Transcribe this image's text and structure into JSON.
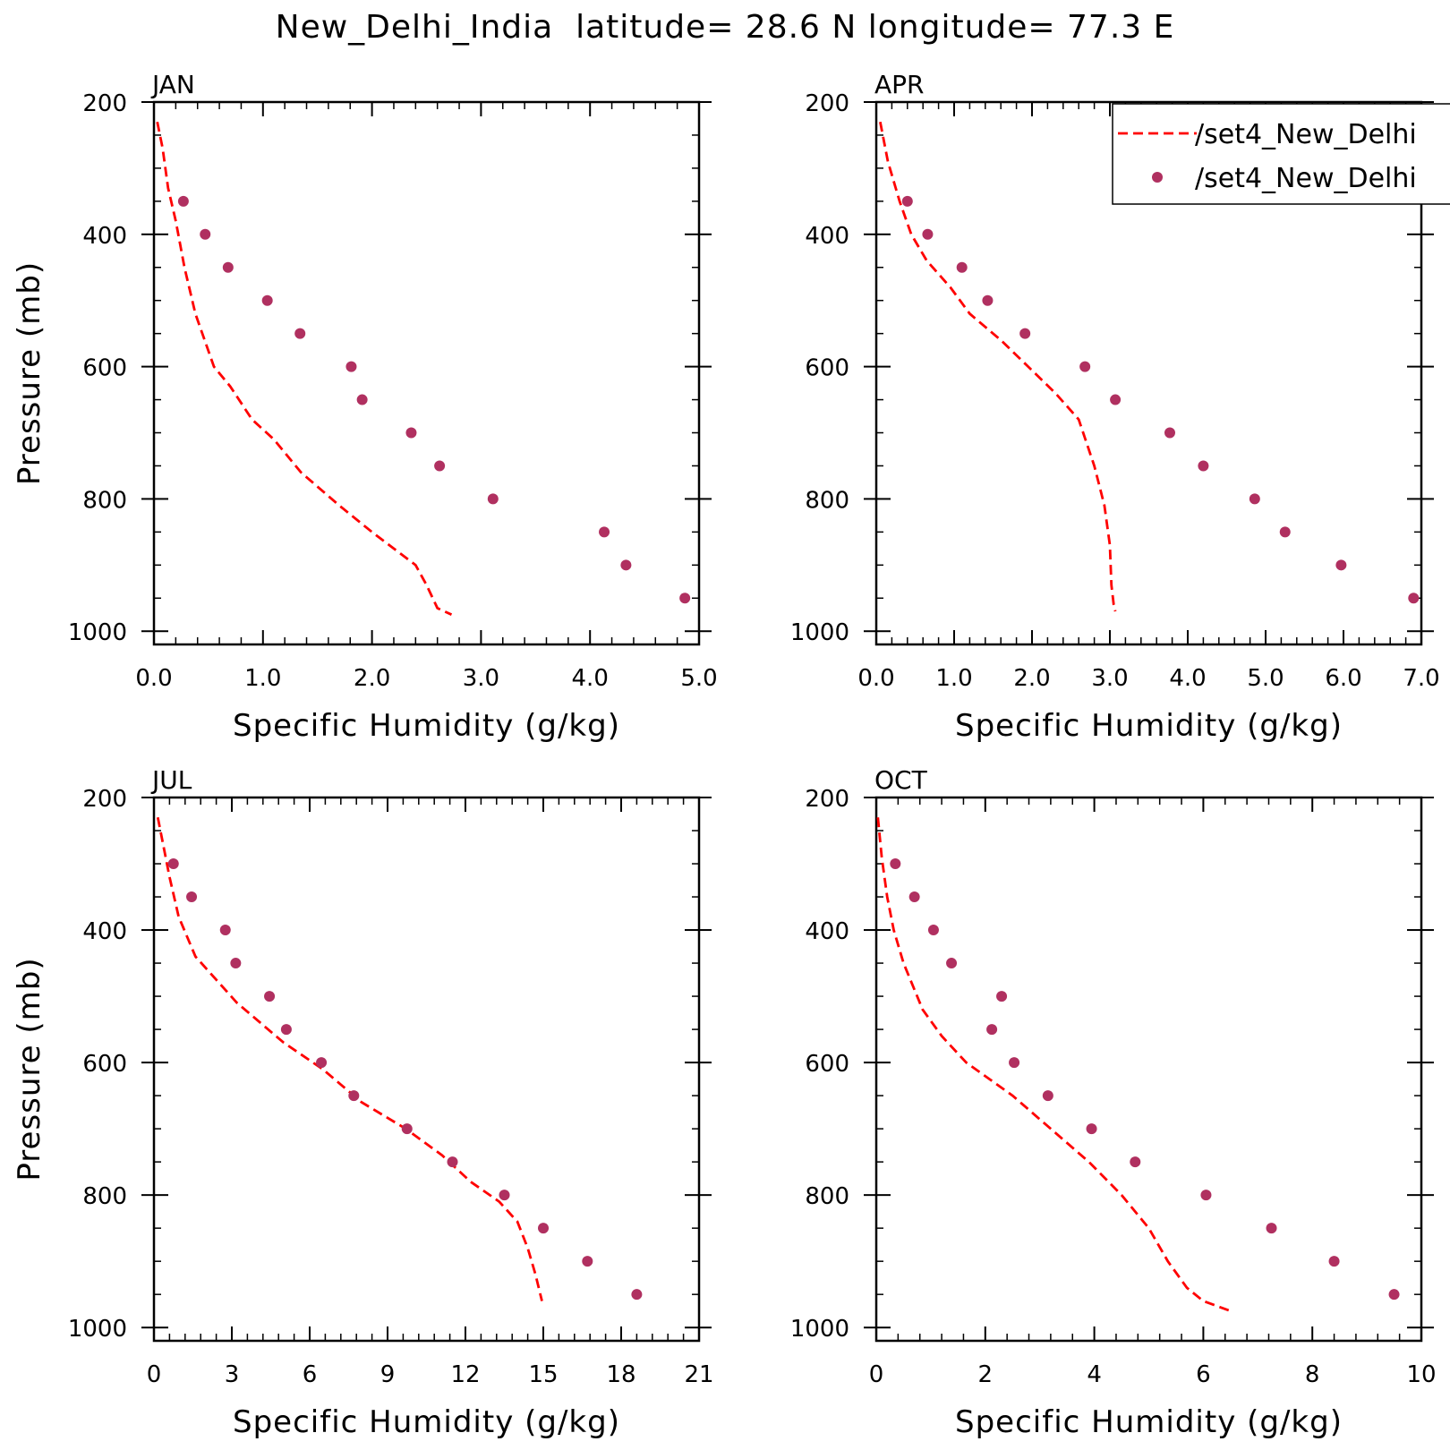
{
  "figure": {
    "title": "New_Delhi_India  latitude= 28.6 N longitude= 77.3 E"
  },
  "legend": {
    "placement": "top-right of APR panel",
    "entries": [
      {
        "label": "/set4_New_Delhi",
        "style": "dashed-line",
        "color": "#ff0000"
      },
      {
        "label": "/set4_New_Delhi",
        "style": "dots",
        "color": "#b03060"
      }
    ]
  },
  "colors": {
    "model": "#ff0000",
    "obs": "#b03060",
    "axes": "#000000"
  },
  "chart_data": [
    {
      "type": "line",
      "panel": "JAN",
      "xlabel": "Specific Humidity (g/kg)",
      "ylabel": "Pressure (mb)",
      "xlim": [
        0,
        5
      ],
      "ylim": [
        1020,
        200
      ],
      "y_reversed": true,
      "x_ticks": [
        0,
        1,
        2,
        3,
        4,
        5
      ],
      "x_tick_labels": [
        "0.0",
        "1.0",
        "2.0",
        "3.0",
        "4.0",
        "5.0"
      ],
      "y_ticks": [
        200,
        400,
        600,
        800,
        1000
      ],
      "y_tick_labels": [
        "200",
        "400",
        "600",
        "800",
        "1000"
      ],
      "series": [
        {
          "style": "dashed-line",
          "points": [
            [
              0.03,
              230
            ],
            [
              0.08,
              270
            ],
            [
              0.13,
              330
            ],
            [
              0.2,
              380
            ],
            [
              0.28,
              450
            ],
            [
              0.38,
              520
            ],
            [
              0.55,
              600
            ],
            [
              0.7,
              630
            ],
            [
              0.9,
              680
            ],
            [
              1.1,
              710
            ],
            [
              1.35,
              760
            ],
            [
              1.7,
              810
            ],
            [
              2.0,
              850
            ],
            [
              2.4,
              900
            ],
            [
              2.5,
              930
            ],
            [
              2.6,
              965
            ],
            [
              2.73,
              975
            ]
          ]
        },
        {
          "style": "dots",
          "points": [
            [
              0.27,
              350
            ],
            [
              0.47,
              400
            ],
            [
              0.68,
              450
            ],
            [
              1.04,
              500
            ],
            [
              1.34,
              550
            ],
            [
              1.81,
              600
            ],
            [
              1.91,
              650
            ],
            [
              2.36,
              700
            ],
            [
              2.62,
              750
            ],
            [
              3.11,
              800
            ],
            [
              4.13,
              850
            ],
            [
              4.33,
              900
            ],
            [
              4.87,
              950
            ]
          ]
        }
      ]
    },
    {
      "type": "line",
      "panel": "APR",
      "xlabel": "Specific Humidity (g/kg)",
      "ylabel": "",
      "xlim": [
        0,
        7
      ],
      "ylim": [
        1020,
        200
      ],
      "y_reversed": true,
      "x_ticks": [
        0,
        1,
        2,
        3,
        4,
        5,
        6,
        7
      ],
      "x_tick_labels": [
        "0.0",
        "1.0",
        "2.0",
        "3.0",
        "4.0",
        "5.0",
        "6.0",
        "7.0"
      ],
      "y_ticks": [
        200,
        400,
        600,
        800,
        1000
      ],
      "y_tick_labels": [
        "200",
        "400",
        "600",
        "800",
        "1000"
      ],
      "series": [
        {
          "style": "dashed-line",
          "points": [
            [
              0.05,
              230
            ],
            [
              0.15,
              290
            ],
            [
              0.3,
              350
            ],
            [
              0.45,
              400
            ],
            [
              0.65,
              440
            ],
            [
              0.95,
              480
            ],
            [
              1.2,
              520
            ],
            [
              1.6,
              560
            ],
            [
              1.95,
              600
            ],
            [
              2.3,
              640
            ],
            [
              2.6,
              680
            ],
            [
              2.8,
              750
            ],
            [
              2.93,
              810
            ],
            [
              3.0,
              870
            ],
            [
              3.02,
              930
            ],
            [
              3.05,
              960
            ],
            [
              3.07,
              970
            ]
          ]
        },
        {
          "style": "dots",
          "points": [
            [
              0.4,
              350
            ],
            [
              0.66,
              400
            ],
            [
              1.1,
              450
            ],
            [
              1.43,
              500
            ],
            [
              1.91,
              550
            ],
            [
              2.68,
              600
            ],
            [
              3.07,
              650
            ],
            [
              3.77,
              700
            ],
            [
              4.2,
              750
            ],
            [
              4.86,
              800
            ],
            [
              5.25,
              850
            ],
            [
              5.97,
              900
            ],
            [
              6.9,
              950
            ]
          ]
        }
      ]
    },
    {
      "type": "line",
      "panel": "JUL",
      "xlabel": "Specific Humidity (g/kg)",
      "ylabel": "Pressure (mb)",
      "xlim": [
        0,
        21
      ],
      "ylim": [
        1020,
        200
      ],
      "y_reversed": true,
      "x_ticks": [
        0,
        3,
        6,
        9,
        12,
        15,
        18,
        21
      ],
      "x_tick_labels": [
        "0",
        "3",
        "6",
        "9",
        "12",
        "15",
        "18",
        "21"
      ],
      "y_ticks": [
        200,
        400,
        600,
        800,
        1000
      ],
      "y_tick_labels": [
        "200",
        "400",
        "600",
        "800",
        "1000"
      ],
      "series": [
        {
          "style": "dashed-line",
          "points": [
            [
              0.15,
              230
            ],
            [
              0.4,
              280
            ],
            [
              0.6,
              320
            ],
            [
              0.95,
              380
            ],
            [
              1.6,
              440
            ],
            [
              3.2,
              510
            ],
            [
              5,
              570
            ],
            [
              6.5,
              610
            ],
            [
              8,
              660
            ],
            [
              9.7,
              700
            ],
            [
              11.1,
              740
            ],
            [
              12.2,
              780
            ],
            [
              13.3,
              810
            ],
            [
              14,
              840
            ],
            [
              14.4,
              880
            ],
            [
              14.7,
              920
            ],
            [
              14.95,
              960
            ]
          ]
        },
        {
          "style": "dots",
          "points": [
            [
              0.75,
              300
            ],
            [
              1.45,
              350
            ],
            [
              2.75,
              400
            ],
            [
              3.15,
              450
            ],
            [
              4.45,
              500
            ],
            [
              5.1,
              550
            ],
            [
              6.45,
              600
            ],
            [
              7.7,
              650
            ],
            [
              9.75,
              700
            ],
            [
              11.5,
              750
            ],
            [
              13.5,
              800
            ],
            [
              15,
              850
            ],
            [
              16.7,
              900
            ],
            [
              18.6,
              950
            ]
          ]
        }
      ]
    },
    {
      "type": "line",
      "panel": "OCT",
      "xlabel": "Specific Humidity (g/kg)",
      "ylabel": "",
      "xlim": [
        0,
        10
      ],
      "ylim": [
        1020,
        200
      ],
      "y_reversed": true,
      "x_ticks": [
        0,
        2,
        4,
        6,
        8,
        10
      ],
      "x_tick_labels": [
        "0",
        "2",
        "4",
        "6",
        "8",
        "10"
      ],
      "y_ticks": [
        200,
        400,
        600,
        800,
        1000
      ],
      "y_tick_labels": [
        "200",
        "400",
        "600",
        "800",
        "1000"
      ],
      "series": [
        {
          "style": "dashed-line",
          "points": [
            [
              0.03,
              230
            ],
            [
              0.1,
              290
            ],
            [
              0.2,
              350
            ],
            [
              0.32,
              400
            ],
            [
              0.5,
              450
            ],
            [
              0.85,
              520
            ],
            [
              1.2,
              560
            ],
            [
              1.65,
              600
            ],
            [
              2.5,
              650
            ],
            [
              3.2,
              700
            ],
            [
              3.9,
              750
            ],
            [
              4.5,
              800
            ],
            [
              5.0,
              850
            ],
            [
              5.35,
              900
            ],
            [
              5.7,
              940
            ],
            [
              6.0,
              960
            ],
            [
              6.5,
              975
            ]
          ]
        },
        {
          "style": "dots",
          "points": [
            [
              0.35,
              300
            ],
            [
              0.7,
              350
            ],
            [
              1.05,
              400
            ],
            [
              1.38,
              450
            ],
            [
              2.3,
              500
            ],
            [
              2.12,
              550
            ],
            [
              2.53,
              600
            ],
            [
              3.15,
              650
            ],
            [
              3.95,
              700
            ],
            [
              4.75,
              750
            ],
            [
              6.05,
              800
            ],
            [
              7.25,
              850
            ],
            [
              8.4,
              900
            ],
            [
              9.5,
              950
            ]
          ]
        }
      ]
    }
  ]
}
